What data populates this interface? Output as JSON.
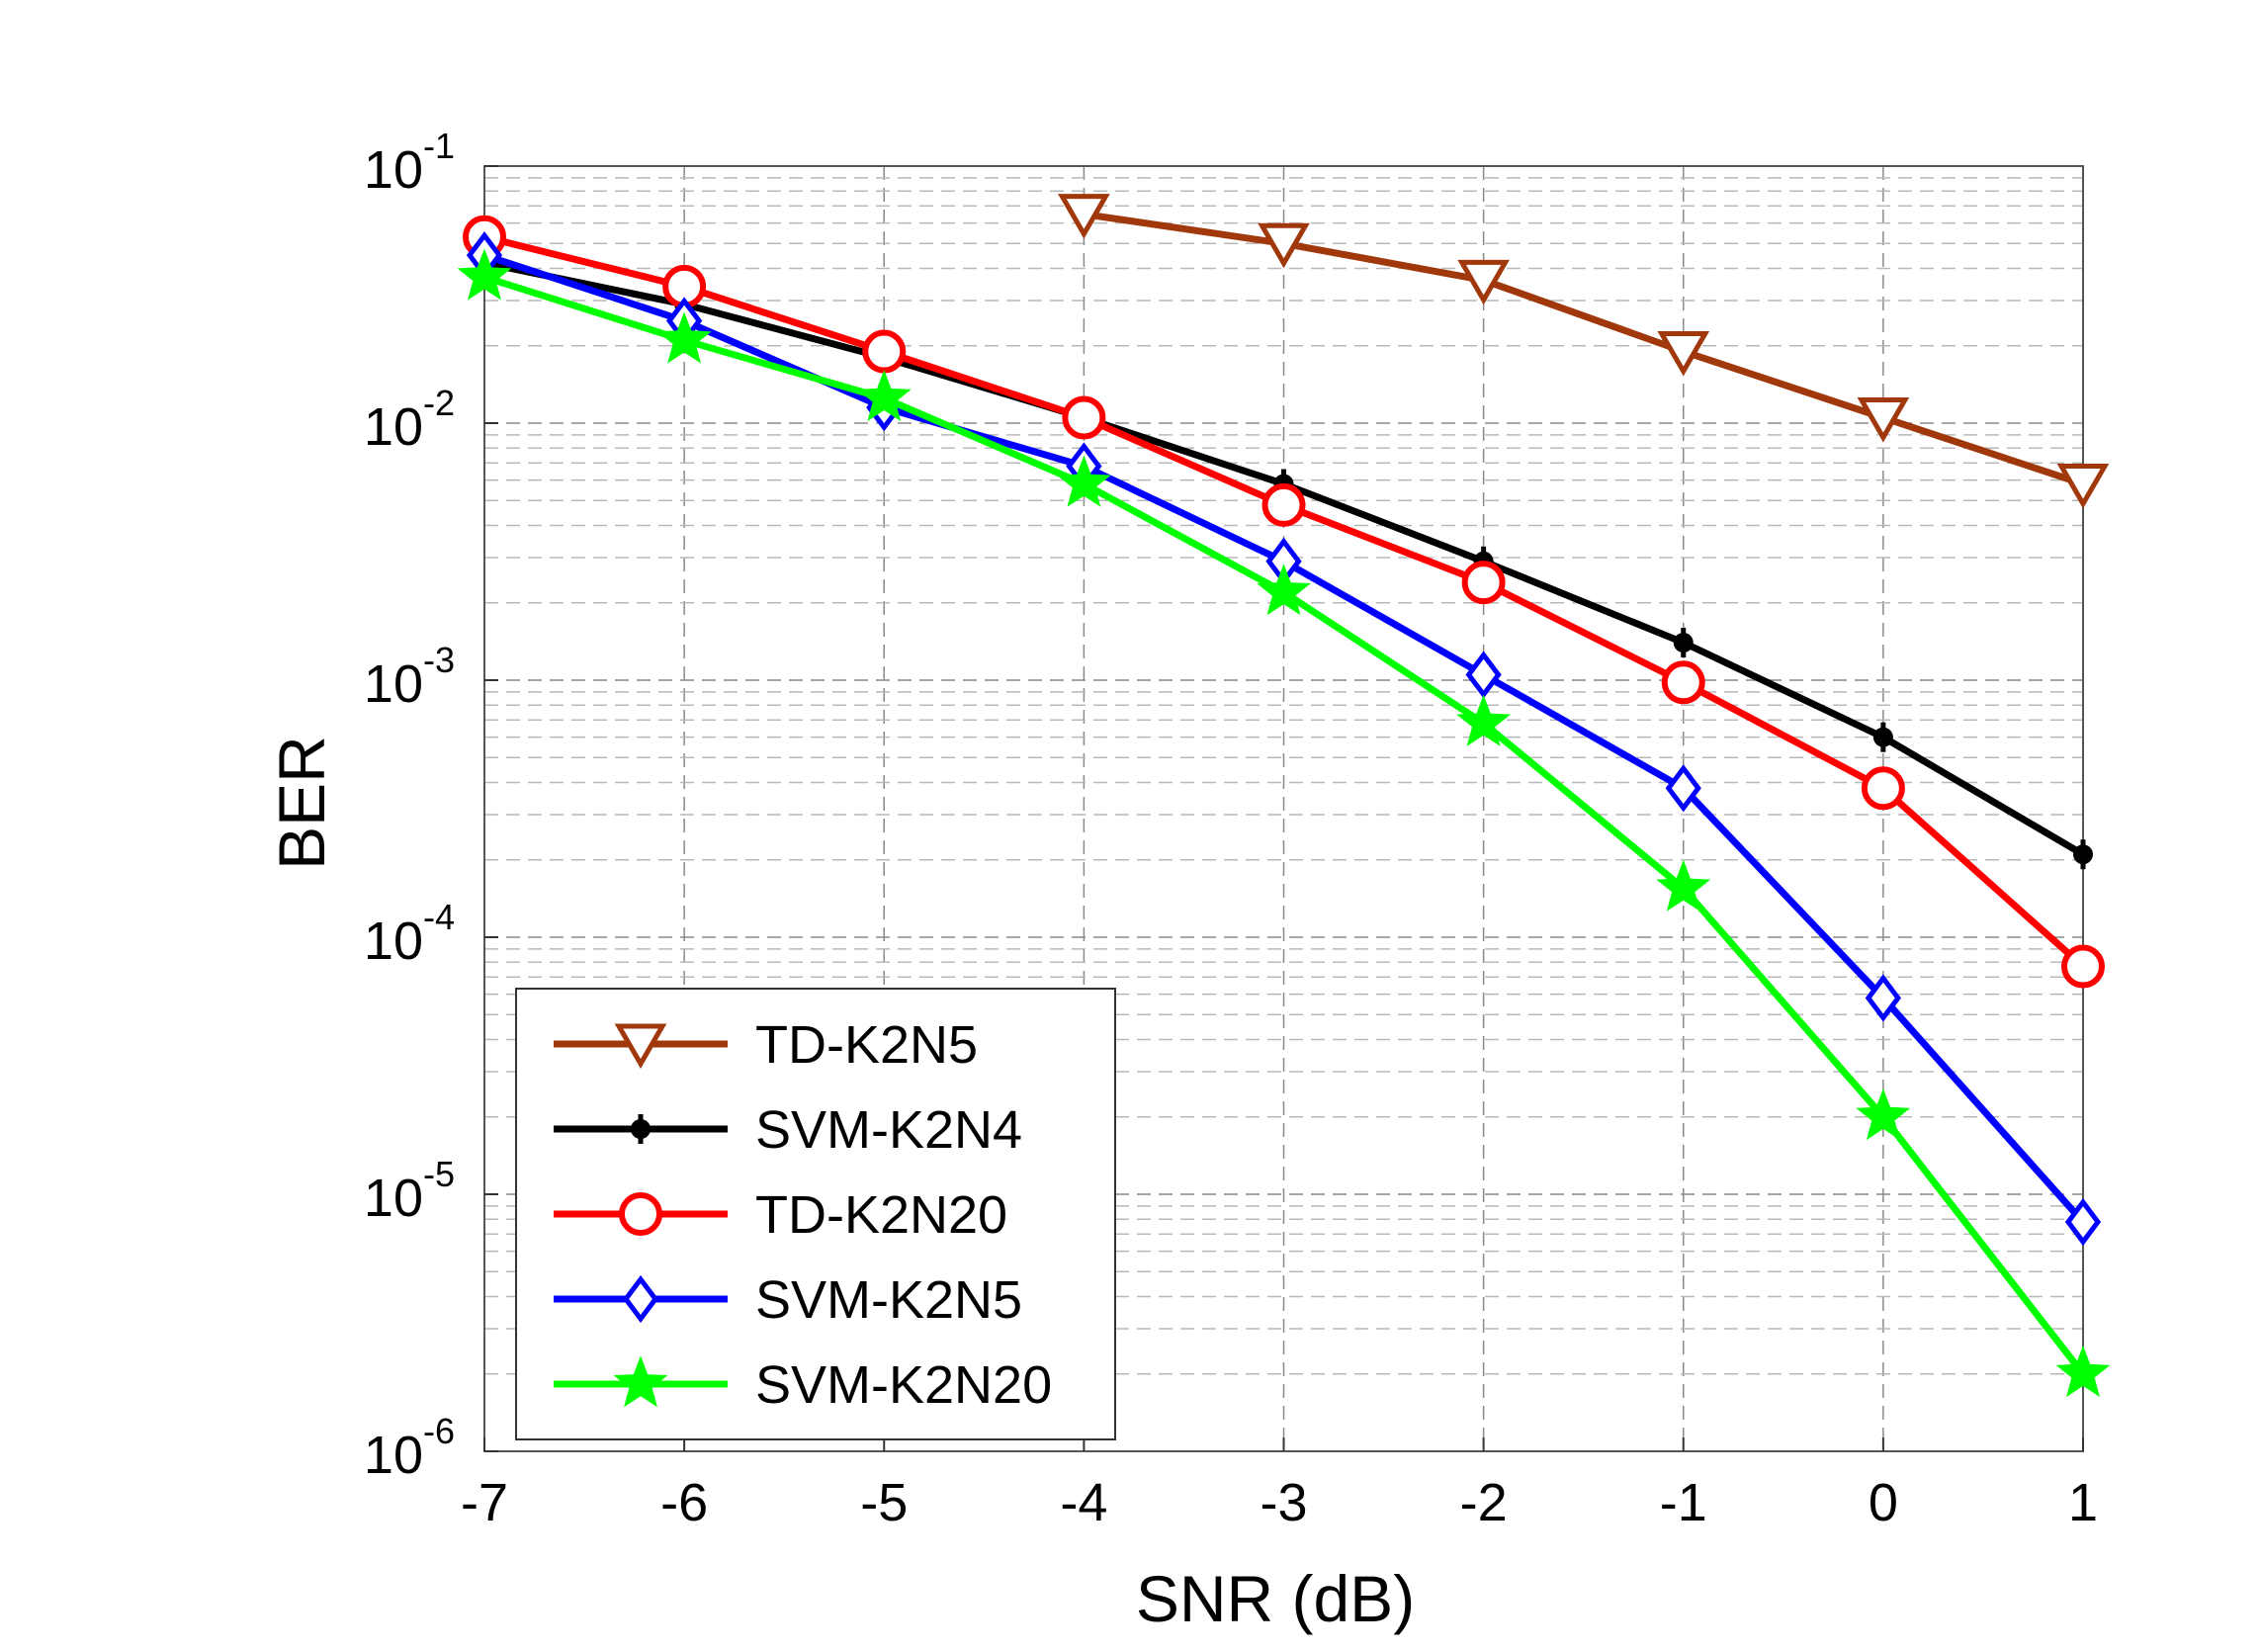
{
  "chart_data": {
    "type": "line",
    "xlabel": "SNR (dB)",
    "ylabel": "BER",
    "yscale": "log",
    "xlim": [
      -7,
      1
    ],
    "ylim": [
      1e-06,
      0.1
    ],
    "grid": true,
    "legend_position": "bottom-left",
    "x_ticks": [
      "-7",
      "-6",
      "-5",
      "-4",
      "-3",
      "-2",
      "-1",
      "0",
      "1"
    ],
    "y_ticks": [
      {
        "base": "10",
        "exp": "-1"
      },
      {
        "base": "10",
        "exp": "-2"
      },
      {
        "base": "10",
        "exp": "-3"
      },
      {
        "base": "10",
        "exp": "-4"
      },
      {
        "base": "10",
        "exp": "-5"
      },
      {
        "base": "10",
        "exp": "-6"
      }
    ],
    "series": [
      {
        "name": "TD-K2N5",
        "color": "#a0380c",
        "marker": "triangle-down",
        "x": [
          -4,
          -3,
          -2,
          -1,
          0,
          1
        ],
        "values": [
          0.065,
          0.05,
          0.036,
          0.019,
          0.0105,
          0.0058
        ]
      },
      {
        "name": "SVM-K2N4",
        "color": "#000000",
        "marker": "filled-dot",
        "x": [
          -7,
          -6,
          -5,
          -4,
          -3,
          -2,
          -1,
          0,
          1
        ],
        "values": [
          0.042,
          0.029,
          0.018,
          0.0105,
          0.0058,
          0.0029,
          0.0014,
          0.0006,
          0.00021
        ]
      },
      {
        "name": "TD-K2N20",
        "color": "#ff0000",
        "marker": "circle",
        "x": [
          -7,
          -6,
          -5,
          -4,
          -3,
          -2,
          -1,
          0,
          1
        ],
        "values": [
          0.053,
          0.034,
          0.019,
          0.0105,
          0.0048,
          0.0024,
          0.00098,
          0.00038,
          7.7e-05
        ]
      },
      {
        "name": "SVM-K2N5",
        "color": "#0000ff",
        "marker": "diamond",
        "x": [
          -7,
          -6,
          -5,
          -4,
          -3,
          -2,
          -1,
          0,
          1
        ],
        "values": [
          0.045,
          0.025,
          0.0115,
          0.0068,
          0.0029,
          0.00105,
          0.00038,
          5.8e-05,
          7.8e-06
        ]
      },
      {
        "name": "SVM-K2N20",
        "color": "#00ff00",
        "marker": "star",
        "x": [
          -7,
          -6,
          -5,
          -4,
          -3,
          -2,
          -1,
          0,
          1
        ],
        "values": [
          0.037,
          0.021,
          0.0125,
          0.0058,
          0.0022,
          0.00068,
          0.000155,
          2e-05,
          2e-06
        ]
      }
    ]
  }
}
